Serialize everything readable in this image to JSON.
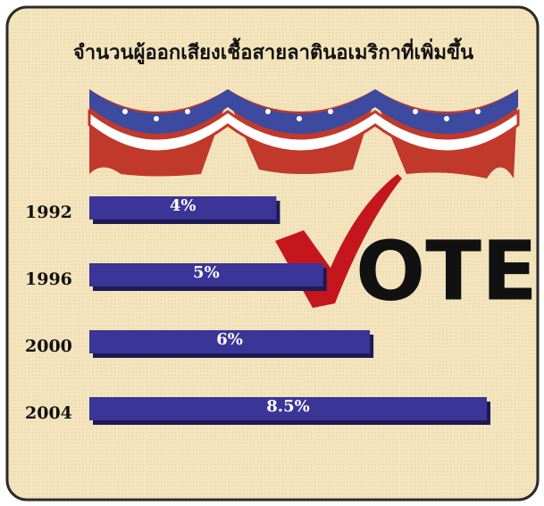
{
  "chart_data": {
    "type": "bar",
    "orientation": "horizontal",
    "title": "จำนวนผู้ออกเสียงเชื้อสายลาตินอเมริกาที่เพิ่มขึ้น",
    "categories": [
      "1992",
      "1996",
      "2000",
      "2004"
    ],
    "values": [
      4,
      5,
      6,
      8.5
    ],
    "value_labels": [
      "4%",
      "5%",
      "6%",
      "8.5%"
    ],
    "color": "#3a3596",
    "annotation": "OTE"
  }
}
